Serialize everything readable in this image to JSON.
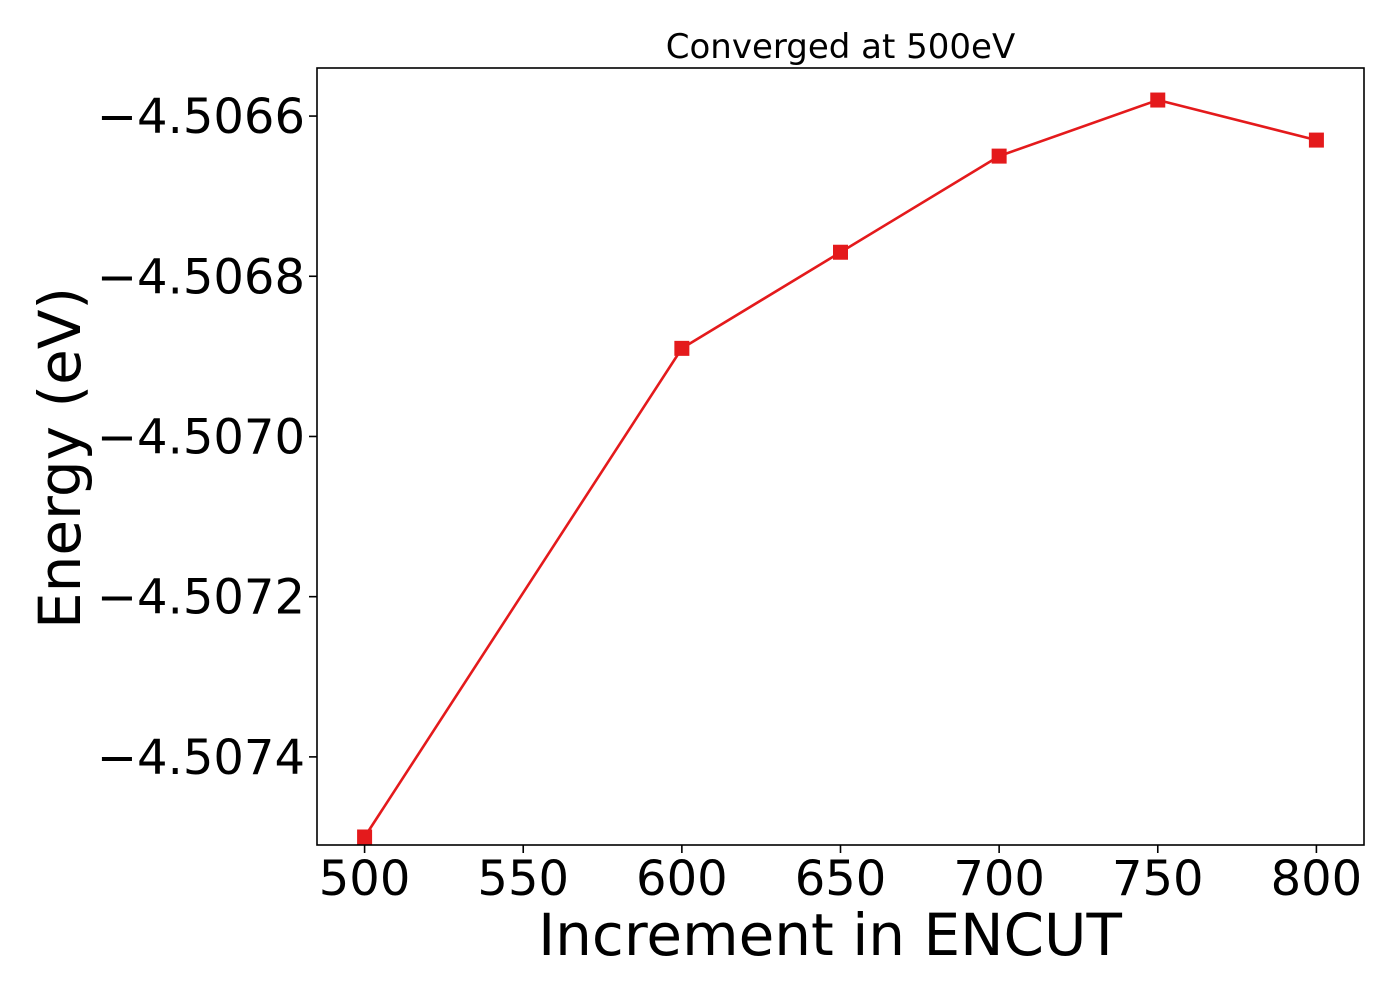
{
  "chart_data": {
    "type": "line",
    "title": "Converged at 500eV",
    "xlabel": "Increment in ENCUT",
    "ylabel": "Energy (eV)",
    "x": [
      500,
      600,
      650,
      700,
      750,
      800
    ],
    "series": [
      {
        "values": [
          -4.5075,
          -4.50689,
          -4.50677,
          -4.50665,
          -4.50658,
          -4.50663
        ],
        "color": "#e41a1c",
        "marker": "square"
      }
    ],
    "xticks": [
      500,
      550,
      600,
      650,
      700,
      750,
      800
    ],
    "xtick_labels": [
      "500",
      "550",
      "600",
      "650",
      "700",
      "750",
      "800"
    ],
    "yticks": [
      -4.5074,
      -4.5072,
      -4.507,
      -4.5068,
      -4.5066
    ],
    "ytick_labels": [
      "−4.5074",
      "−4.5072",
      "−4.5070",
      "−4.5068",
      "−4.5066"
    ],
    "xlim": [
      485,
      815
    ],
    "ylim": [
      -4.50751,
      -4.50654
    ],
    "grid": false,
    "legend": "none"
  }
}
